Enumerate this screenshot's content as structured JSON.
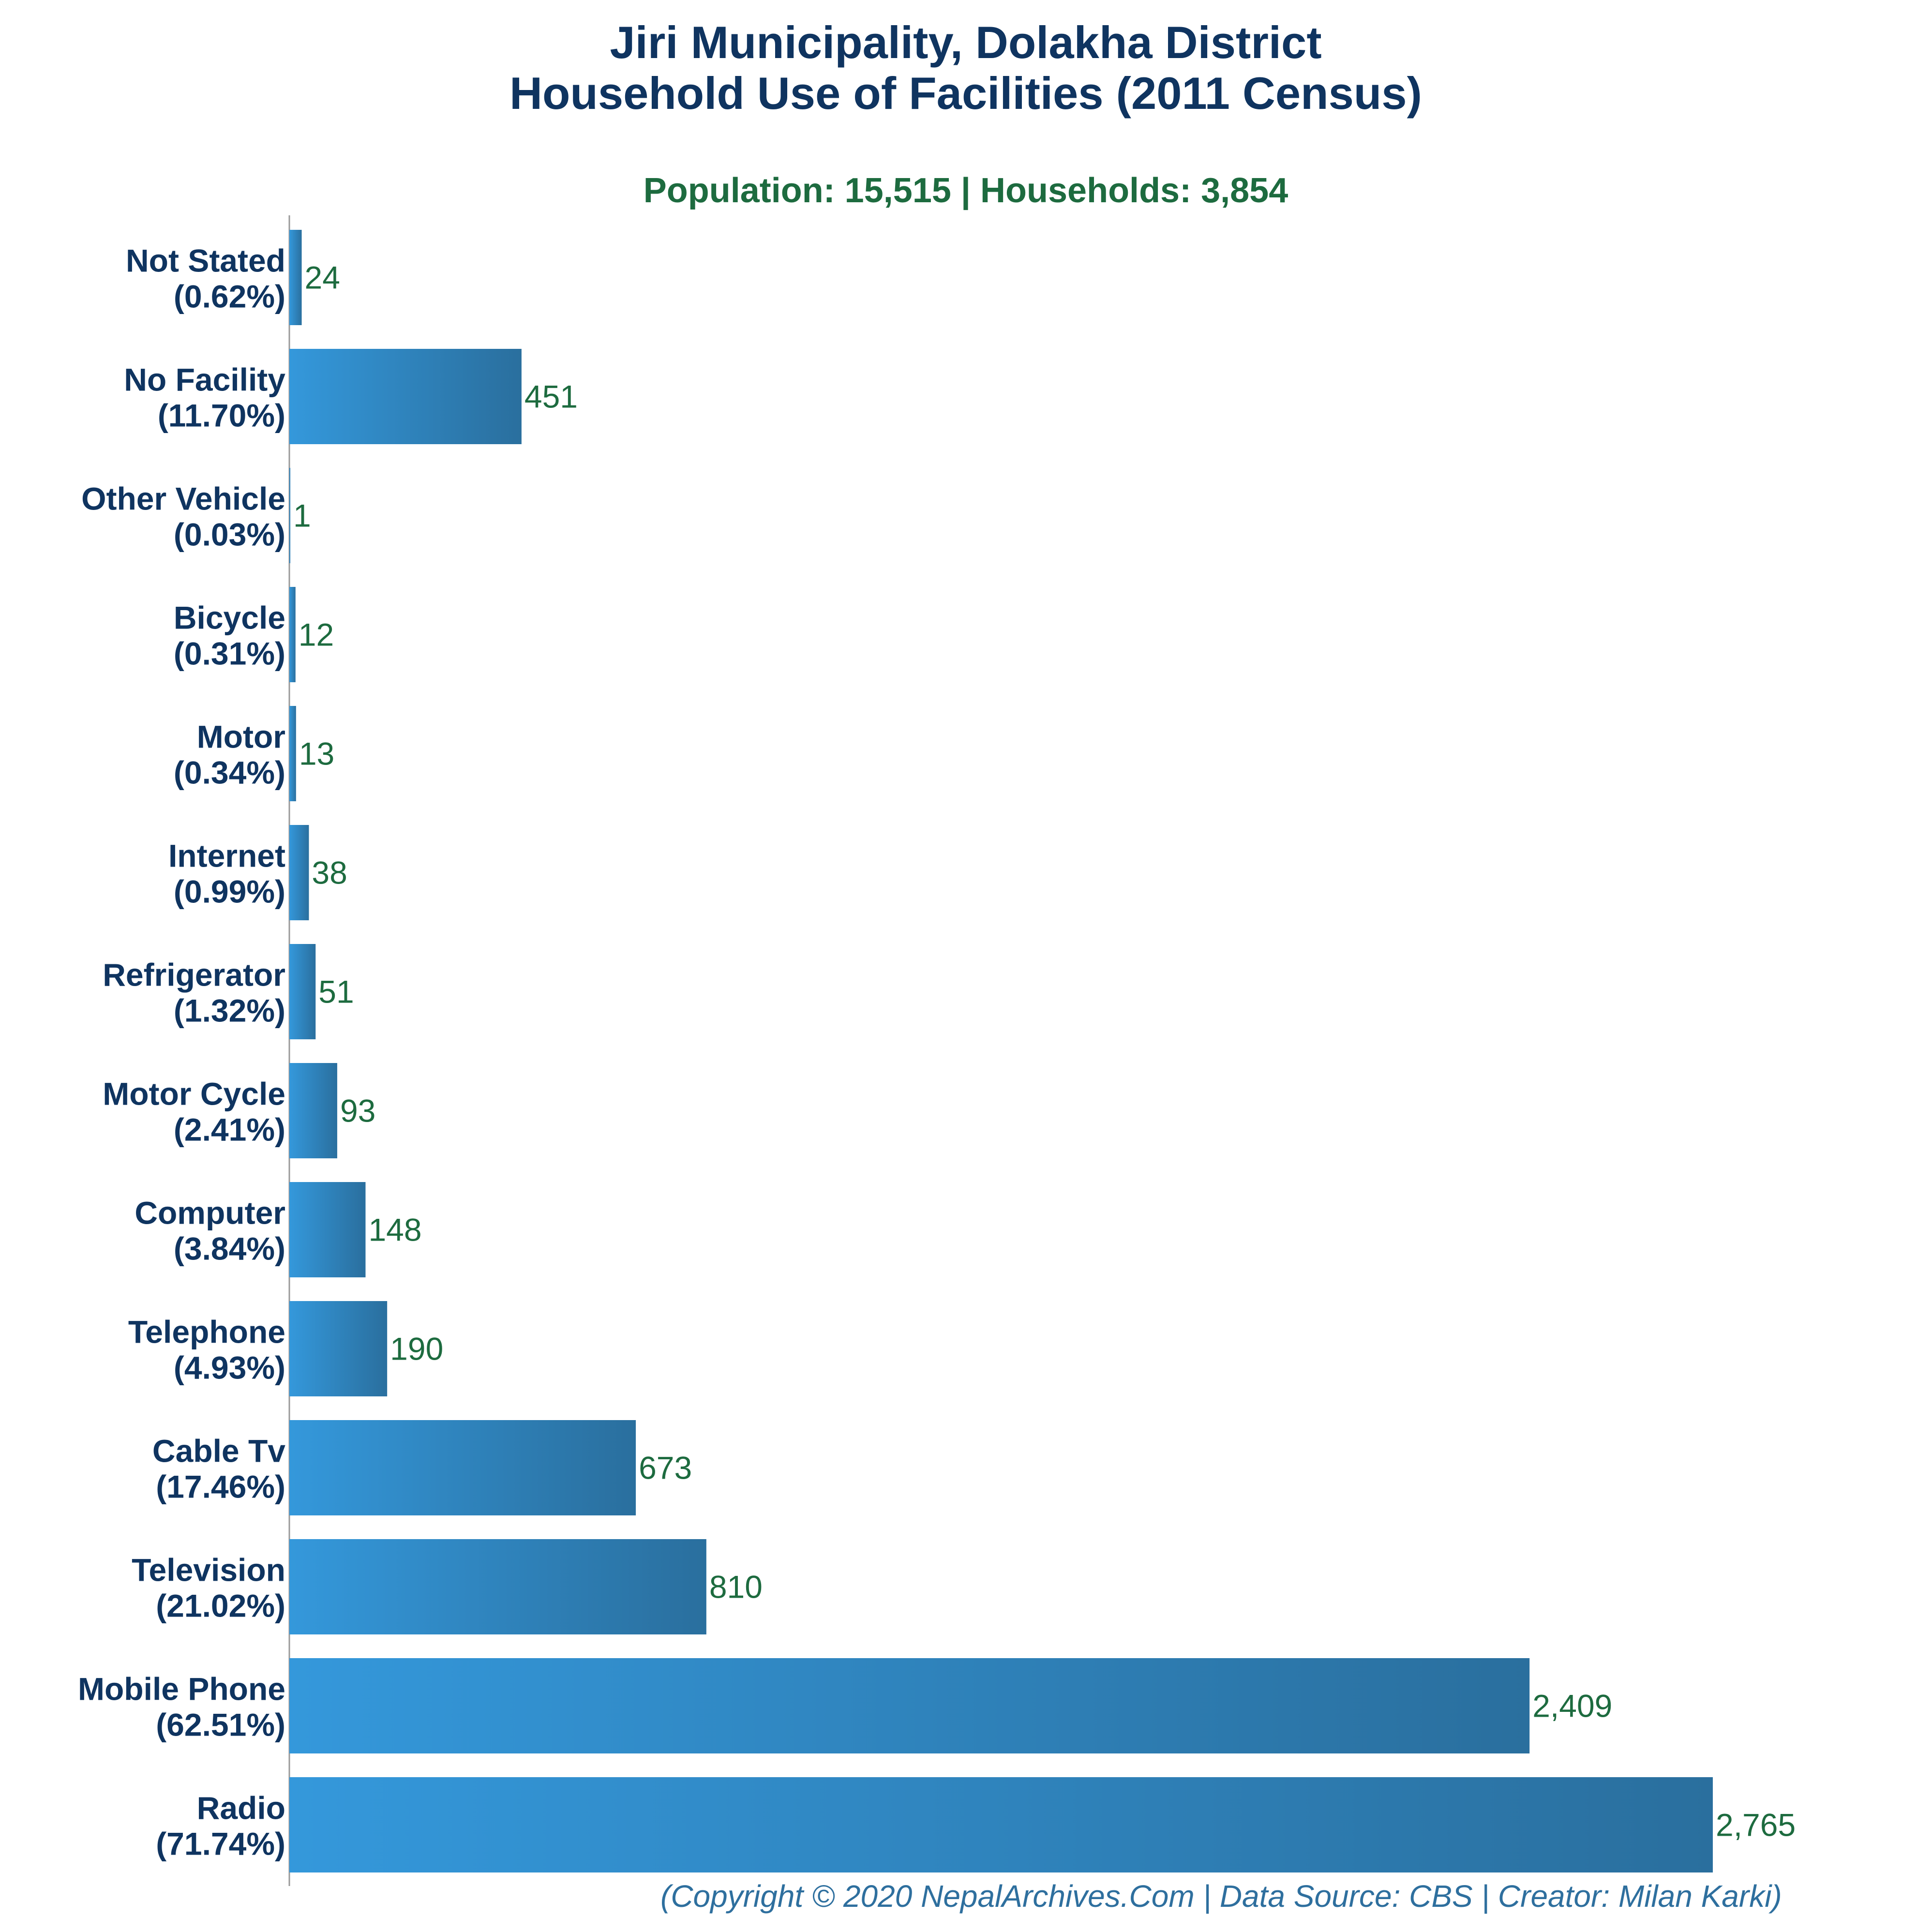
{
  "colors": {
    "bar_light": "#3498db",
    "bar_dark": "#2a6f9e",
    "title": "#0f3460",
    "subtitle": "#1d6b3f",
    "value_label": "#1d6b3f",
    "footer": "#2e6f9e"
  },
  "chart_data": {
    "type": "bar",
    "orientation": "horizontal",
    "title": "Jiri Municipality, Dolakha District",
    "title_line2": "Household Use of Facilities (2011 Census)",
    "subtitle": "Population: 15,515 | Households: 3,854",
    "footer": "(Copyright © 2020 NepalArchives.Com | Data Source: CBS | Creator: Milan Karki)",
    "categories": [
      "Not Stated",
      "No Facility",
      "Other Vehicle",
      "Bicycle",
      "Motor",
      "Internet",
      "Refrigerator",
      "Motor Cycle",
      "Computer",
      "Telephone",
      "Cable Tv",
      "Television",
      "Mobile Phone",
      "Radio"
    ],
    "percent_labels": [
      "(0.62%)",
      "(11.70%)",
      "(0.03%)",
      "(0.31%)",
      "(0.34%)",
      "(0.99%)",
      "(1.32%)",
      "(2.41%)",
      "(3.84%)",
      "(4.93%)",
      "(17.46%)",
      "(21.02%)",
      "(62.51%)",
      "(71.74%)"
    ],
    "values": [
      24,
      451,
      1,
      12,
      13,
      38,
      51,
      93,
      148,
      190,
      673,
      810,
      2409,
      2765
    ],
    "value_labels": [
      "24",
      "451",
      "1",
      "12",
      "13",
      "38",
      "51",
      "93",
      "148",
      "190",
      "673",
      "810",
      "2,409",
      "2,765"
    ],
    "xlim": [
      0,
      2765
    ],
    "grid": false,
    "legend": "none"
  }
}
